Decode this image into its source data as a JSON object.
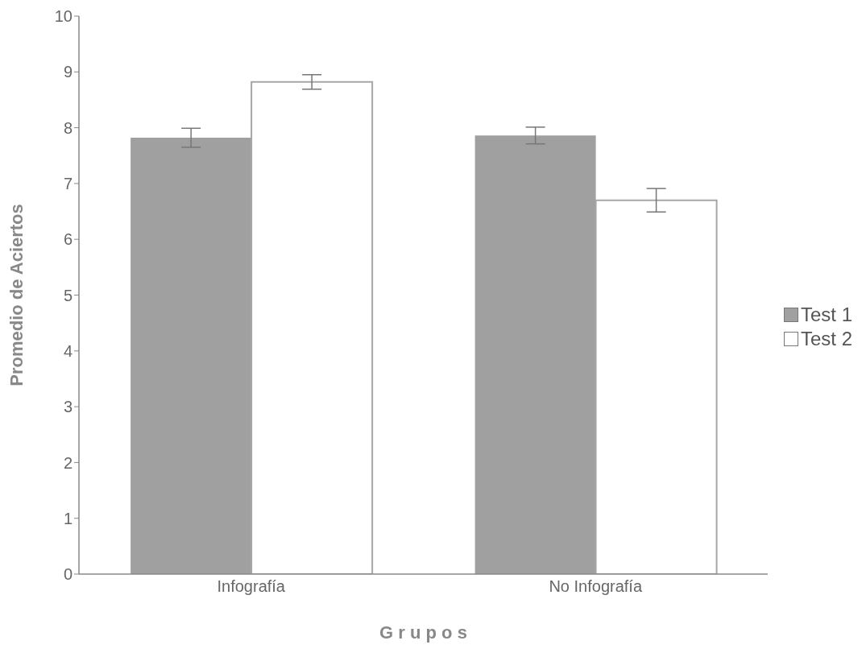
{
  "chart_data": {
    "type": "bar",
    "xlabel": "G r u p o s",
    "ylabel": "Promedio de Aciertos",
    "categories": [
      "Infografía",
      "No Infografía"
    ],
    "series": [
      {
        "name": "Test 1",
        "color": "#a0a0a0",
        "values": [
          7.82,
          7.86
        ],
        "errors": [
          0.17,
          0.15
        ]
      },
      {
        "name": "Test 2",
        "color": "#ffffff",
        "values": [
          8.82,
          6.7
        ],
        "errors": [
          0.13,
          0.21
        ]
      }
    ],
    "ylim": [
      0,
      10
    ],
    "yticks": [
      0,
      1,
      2,
      3,
      4,
      5,
      6,
      7,
      8,
      9,
      10
    ],
    "grid": false,
    "legend": "right"
  }
}
